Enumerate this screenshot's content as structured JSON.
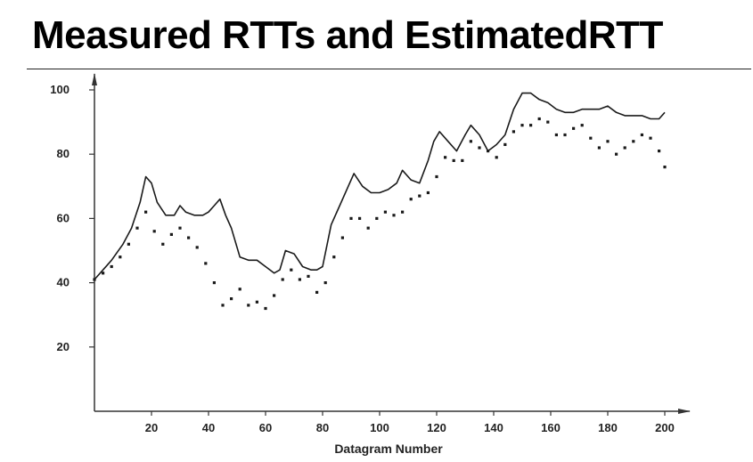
{
  "slide": {
    "title": "Measured RTTs and EstimatedRTT"
  },
  "chart_data": {
    "type": "line",
    "title": "",
    "xlabel": "Datagram Number",
    "ylabel": "",
    "xlim": [
      0,
      200
    ],
    "ylim": [
      0,
      100
    ],
    "x_ticks": [
      20,
      40,
      60,
      80,
      100,
      120,
      140,
      160,
      180,
      200
    ],
    "y_ticks": [
      20,
      40,
      60,
      80,
      100
    ],
    "grid": false,
    "legend": "none",
    "colors": {
      "estimated": "#1a1a1a",
      "measured": "#1a1a1a"
    },
    "series": [
      {
        "style": "solid",
        "x": [
          0,
          3,
          6,
          10,
          13,
          16,
          18,
          20,
          22,
          25,
          28,
          30,
          32,
          35,
          38,
          40,
          42,
          44,
          46,
          48,
          51,
          54,
          57,
          60,
          63,
          65,
          67,
          70,
          73,
          76,
          78,
          80,
          83,
          86,
          89,
          91,
          94,
          97,
          100,
          103,
          106,
          108,
          111,
          114,
          117,
          119,
          121,
          124,
          127,
          130,
          132,
          135,
          138,
          141,
          144,
          147,
          150,
          153,
          156,
          159,
          162,
          165,
          168,
          171,
          174,
          177,
          180,
          183,
          186,
          189,
          192,
          195,
          198,
          200
        ],
        "y": [
          41,
          44,
          47,
          52,
          57,
          65,
          73,
          71,
          65,
          61,
          61,
          64,
          62,
          61,
          61,
          62,
          64,
          66,
          61,
          57,
          48,
          47,
          47,
          45,
          43,
          44,
          50,
          49,
          45,
          44,
          44,
          45,
          58,
          64,
          70,
          74,
          70,
          68,
          68,
          69,
          71,
          75,
          72,
          71,
          78,
          84,
          87,
          84,
          81,
          86,
          89,
          86,
          81,
          83,
          86,
          94,
          99,
          99,
          97,
          96,
          94,
          93,
          93,
          94,
          94,
          94,
          95,
          93,
          92,
          92,
          92,
          91,
          91,
          93
        ]
      },
      {
        "style": "dotted",
        "x": [
          0,
          3,
          6,
          9,
          12,
          15,
          18,
          21,
          24,
          27,
          30,
          33,
          36,
          39,
          42,
          45,
          48,
          51,
          54,
          57,
          60,
          63,
          66,
          69,
          72,
          75,
          78,
          81,
          84,
          87,
          90,
          93,
          96,
          99,
          102,
          105,
          108,
          111,
          114,
          117,
          120,
          123,
          126,
          129,
          132,
          135,
          138,
          141,
          144,
          147,
          150,
          153,
          156,
          159,
          162,
          165,
          168,
          171,
          174,
          177,
          180,
          183,
          186,
          189,
          192,
          195,
          198,
          200
        ],
        "y": [
          41,
          43,
          45,
          48,
          52,
          57,
          62,
          56,
          52,
          55,
          57,
          54,
          51,
          46,
          40,
          33,
          35,
          38,
          33,
          34,
          32,
          36,
          41,
          44,
          41,
          42,
          37,
          40,
          48,
          54,
          60,
          60,
          57,
          60,
          62,
          61,
          62,
          66,
          67,
          68,
          73,
          79,
          78,
          78,
          84,
          82,
          81,
          79,
          83,
          87,
          89,
          89,
          91,
          90,
          86,
          86,
          88,
          89,
          85,
          82,
          84,
          80,
          82,
          84,
          86,
          85,
          81,
          76
        ]
      }
    ]
  }
}
